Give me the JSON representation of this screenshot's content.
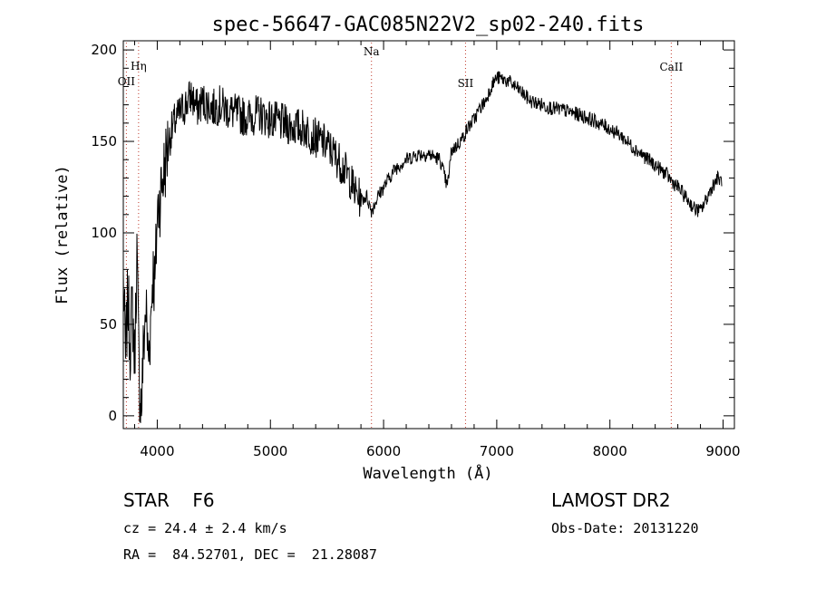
{
  "chart_data": {
    "type": "line",
    "title": "spec-56647-GAC085N22V2_sp02-240.fits",
    "xlabel": "Wavelength (Å)",
    "ylabel": "Flux (relative)",
    "xlim": [
      3700,
      9100
    ],
    "ylim": [
      -7,
      205
    ],
    "x_ticks": [
      4000,
      5000,
      6000,
      7000,
      8000,
      9000
    ],
    "y_ticks": [
      0,
      50,
      100,
      150,
      200
    ],
    "grid": false,
    "line_color": "#000000",
    "marker_color": "#c0392b",
    "lines": [
      {
        "label": "OII",
        "wavelength": 3727
      },
      {
        "label": "Hη",
        "wavelength": 3835
      },
      {
        "label": "Na",
        "wavelength": 5893
      },
      {
        "label": "SII",
        "wavelength": 6724
      },
      {
        "label": "CaII",
        "wavelength": 8542
      }
    ],
    "series": [
      {
        "x": [
          3700,
          3720,
          3740,
          3760,
          3780,
          3800,
          3820,
          3840,
          3860,
          3880,
          3900,
          3920,
          3940,
          3960,
          3980,
          4000,
          4050,
          4100,
          4150,
          4200,
          4250,
          4300,
          4350,
          4400,
          4450,
          4500,
          4550,
          4600,
          4700,
          4800,
          4900,
          5000,
          5100,
          5200,
          5300,
          5400,
          5500,
          5600,
          5700,
          5750,
          5800,
          5850,
          5893,
          5950,
          6000,
          6100,
          6200,
          6300,
          6400,
          6500,
          6563,
          6600,
          6650,
          6700,
          6750,
          6800,
          6850,
          6900,
          6950,
          7000,
          7100,
          7200,
          7300,
          7400,
          7500,
          7600,
          7700,
          7800,
          7900,
          8000,
          8100,
          8200,
          8300,
          8400,
          8500,
          8550,
          8600,
          8700,
          8750,
          8800,
          8850,
          8900,
          8950,
          8990
        ],
        "y": [
          75,
          30,
          65,
          40,
          60,
          30,
          90,
          20,
          5,
          40,
          60,
          30,
          50,
          80,
          70,
          110,
          130,
          150,
          160,
          165,
          170,
          175,
          168,
          172,
          170,
          168,
          170,
          168,
          165,
          163,
          165,
          162,
          160,
          158,
          157,
          152,
          148,
          140,
          130,
          122,
          118,
          120,
          112,
          120,
          125,
          135,
          140,
          143,
          143,
          140,
          125,
          145,
          148,
          152,
          158,
          162,
          168,
          172,
          180,
          185,
          183,
          178,
          172,
          170,
          168,
          167,
          165,
          163,
          160,
          157,
          153,
          147,
          142,
          137,
          132,
          128,
          125,
          117,
          113,
          112,
          118,
          125,
          130,
          128
        ]
      }
    ]
  },
  "footer": {
    "object": "STAR    F6",
    "velocity": "cz = 24.4 ± 2.4 km/s",
    "coords": "RA =  84.52701, DEC =  21.28087",
    "survey": "LAMOST DR2",
    "obs_date": "Obs-Date: 20131220"
  }
}
